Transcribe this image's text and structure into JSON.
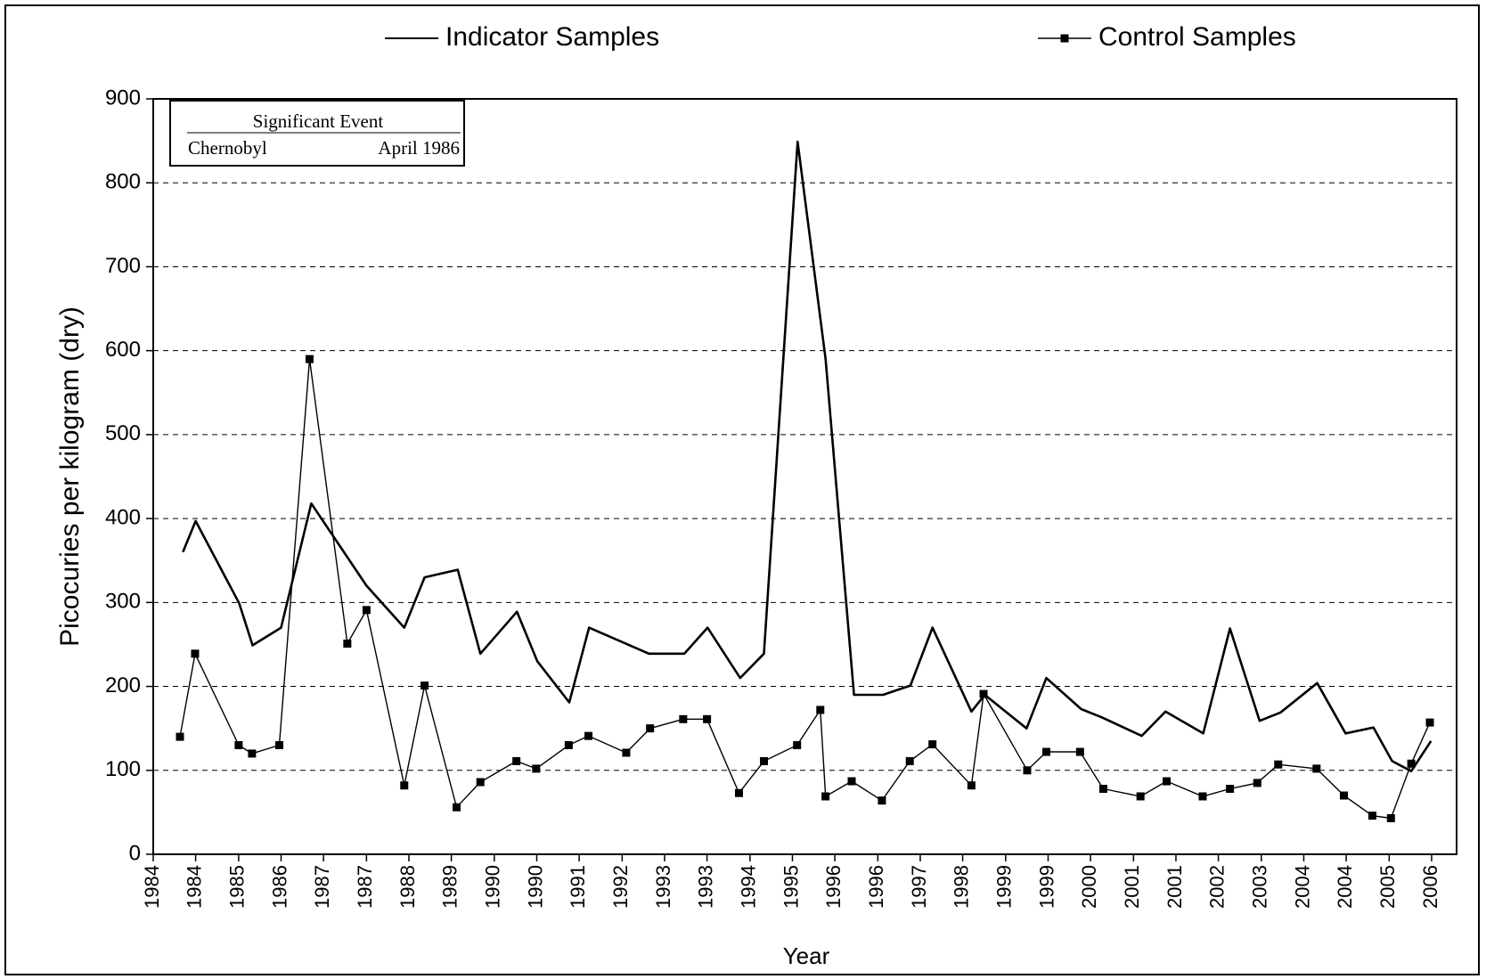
{
  "chart_data": {
    "type": "line",
    "xlabel": "Year",
    "ylabel": "Picocuries per kilogram (dry)",
    "annotation": {
      "header": "Significant Event",
      "event": "Chernobyl",
      "date": "April 1986"
    },
    "xlim": [
      1984,
      2006.43
    ],
    "xticks": [
      {
        "value": 1984,
        "label": "1984"
      },
      {
        "value": 1984.73,
        "label": "1984"
      },
      {
        "value": 1985.47,
        "label": "1985"
      },
      {
        "value": 1986.2,
        "label": "1986"
      },
      {
        "value": 1986.93,
        "label": "1987"
      },
      {
        "value": 1987.67,
        "label": "1987"
      },
      {
        "value": 1988.4,
        "label": "1988"
      },
      {
        "value": 1989.13,
        "label": "1989"
      },
      {
        "value": 1989.87,
        "label": "1990"
      },
      {
        "value": 1990.6,
        "label": "1990"
      },
      {
        "value": 1991.33,
        "label": "1991"
      },
      {
        "value": 1992.07,
        "label": "1992"
      },
      {
        "value": 1992.8,
        "label": "1993"
      },
      {
        "value": 1993.53,
        "label": "1993"
      },
      {
        "value": 1994.27,
        "label": "1994"
      },
      {
        "value": 1995,
        "label": "1995"
      },
      {
        "value": 1995.73,
        "label": "1996"
      },
      {
        "value": 1996.47,
        "label": "1996"
      },
      {
        "value": 1997.2,
        "label": "1997"
      },
      {
        "value": 1997.93,
        "label": "1998"
      },
      {
        "value": 1998.67,
        "label": "1999"
      },
      {
        "value": 1999.4,
        "label": "1999"
      },
      {
        "value": 2000.13,
        "label": "2000"
      },
      {
        "value": 2000.87,
        "label": "2001"
      },
      {
        "value": 2001.6,
        "label": "2001"
      },
      {
        "value": 2002.33,
        "label": "2002"
      },
      {
        "value": 2003.07,
        "label": "2003"
      },
      {
        "value": 2003.8,
        "label": "2004"
      },
      {
        "value": 2004.53,
        "label": "2004"
      },
      {
        "value": 2005.27,
        "label": "2005"
      },
      {
        "value": 2006,
        "label": "2006"
      }
    ],
    "ylim": [
      0,
      900
    ],
    "yticks": [
      0,
      100,
      200,
      300,
      400,
      500,
      600,
      700,
      800,
      900
    ],
    "grid": true,
    "legend": "top",
    "series": [
      {
        "name": "Indicator Samples",
        "color": "#000000",
        "x": [
          1984.51,
          1984.73,
          1985.48,
          1985.71,
          1986.2,
          1986.72,
          1987.67,
          1988.32,
          1988.67,
          1989.24,
          1989.63,
          1990.26,
          1990.61,
          1991.16,
          1991.5,
          1992.53,
          1993.14,
          1993.54,
          1994.1,
          1994.51,
          1995.09,
          1995.57,
          1996.06,
          1996.56,
          1997.03,
          1997.41,
          1998.08,
          1998.31,
          1999.03,
          1999.37,
          1999.97,
          2000.33,
          2001.01,
          2001.42,
          2002.07,
          2002.53,
          2003.04,
          2003.4,
          2004.03,
          2004.52,
          2005.0,
          2005.32,
          2005.65,
          2005.99
        ],
        "values": [
          360,
          397,
          299,
          249,
          270,
          418,
          320,
          270,
          330,
          339,
          239,
          289,
          230,
          181,
          270,
          239,
          239,
          270,
          210,
          239,
          849,
          590,
          190,
          190,
          201,
          270,
          170,
          190,
          150,
          210,
          173,
          163,
          141,
          170,
          144,
          269,
          159,
          169,
          204,
          144,
          151,
          111,
          99,
          135
        ]
      },
      {
        "name": "Control Samples",
        "color": "#000000",
        "marker": "square",
        "x": [
          1984.46,
          1984.72,
          1985.47,
          1985.7,
          1986.17,
          1986.69,
          1987.34,
          1987.67,
          1988.32,
          1988.67,
          1989.22,
          1989.63,
          1990.25,
          1990.59,
          1991.15,
          1991.49,
          1992.14,
          1992.55,
          1993.12,
          1993.53,
          1994.08,
          1994.51,
          1995.08,
          1995.48,
          1995.57,
          1996.02,
          1996.54,
          1997.02,
          1997.41,
          1998.08,
          1998.29,
          1999.04,
          1999.37,
          1999.95,
          2000.35,
          2000.99,
          2001.44,
          2002.06,
          2002.53,
          2003.0,
          2003.36,
          2004.02,
          2004.49,
          2004.98,
          2005.3,
          2005.65,
          2005.97
        ],
        "values": [
          140,
          239,
          130,
          120,
          130,
          590,
          251,
          291,
          82,
          201,
          56,
          86,
          111,
          102,
          130,
          141,
          121,
          150,
          161,
          161,
          73,
          111,
          130,
          172,
          69,
          87,
          64,
          111,
          131,
          82,
          191,
          100,
          122,
          122,
          78,
          69,
          87,
          69,
          78,
          85,
          107,
          102,
          70,
          46,
          43,
          108,
          157
        ]
      }
    ]
  }
}
